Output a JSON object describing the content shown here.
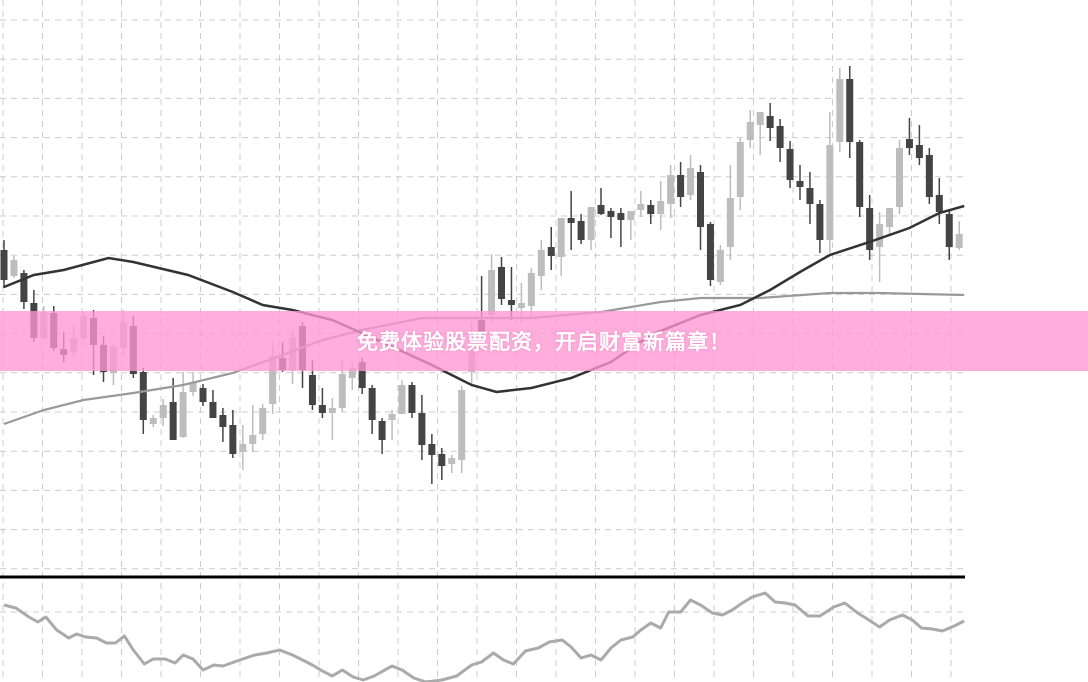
{
  "banner": {
    "text": "免费体验股票配资，开启财富新篇章！"
  },
  "colors": {
    "bearish": "#444444",
    "bullish": "#bdbdbd",
    "ma_fast": "#333333",
    "ma_slow": "#999999",
    "oscillator": "#aaaaaa",
    "banner": "#ff96d4",
    "grid": "#cccccc"
  },
  "chart_data": {
    "type": "candlestick",
    "title": "",
    "grid": true,
    "candles_ohlc": [
      [
        35.0,
        36.0,
        31.2,
        32.0
      ],
      [
        32.4,
        34.4,
        32.2,
        34.0
      ],
      [
        32.7,
        33.0,
        29.1,
        29.8
      ],
      [
        29.7,
        31.0,
        25.8,
        26.2
      ],
      [
        26.2,
        29.4,
        26.0,
        28.8
      ],
      [
        28.7,
        29.4,
        24.9,
        25.2
      ],
      [
        25.1,
        26.8,
        23.8,
        24.5
      ],
      [
        24.8,
        27.4,
        24.3,
        26.2
      ],
      [
        26.2,
        28.8,
        26.0,
        28.4
      ],
      [
        28.2,
        29.0,
        22.5,
        25.5
      ],
      [
        25.5,
        26.4,
        21.8,
        22.8
      ],
      [
        22.7,
        25.6,
        21.5,
        25.4
      ],
      [
        25.2,
        29.0,
        24.5,
        27.8
      ],
      [
        27.4,
        28.4,
        22.2,
        22.6
      ],
      [
        22.8,
        23.2,
        16.6,
        18.0
      ],
      [
        17.6,
        18.5,
        17.3,
        18.2
      ],
      [
        18.2,
        20.1,
        17.4,
        19.5
      ],
      [
        19.8,
        22.2,
        16.0,
        16.0
      ],
      [
        16.3,
        22.8,
        16.2,
        20.8
      ],
      [
        20.8,
        22.8,
        20.4,
        21.7
      ],
      [
        21.2,
        21.6,
        19.4,
        19.8
      ],
      [
        19.8,
        21.0,
        18.2,
        18.2
      ],
      [
        18.5,
        19.2,
        15.8,
        17.3
      ],
      [
        17.5,
        19.0,
        14.2,
        14.6
      ],
      [
        14.8,
        17.5,
        13.0,
        15.6
      ],
      [
        15.6,
        19.5,
        14.8,
        16.5
      ],
      [
        16.6,
        19.6,
        16.0,
        19.2
      ],
      [
        19.6,
        25.8,
        18.6,
        24.4
      ],
      [
        24.2,
        25.8,
        22.8,
        23.0
      ],
      [
        23.0,
        27.0,
        21.6,
        26.2
      ],
      [
        27.4,
        27.8,
        21.2,
        23.0
      ],
      [
        22.5,
        24.0,
        19.0,
        19.5
      ],
      [
        19.5,
        21.2,
        18.2,
        18.7
      ],
      [
        18.7,
        20.2,
        16.0,
        19.2
      ],
      [
        19.2,
        24.0,
        18.8,
        22.6
      ],
      [
        22.2,
        23.8,
        21.0,
        23.2
      ],
      [
        23.8,
        24.2,
        20.6,
        21.2
      ],
      [
        21.2,
        21.5,
        16.6,
        18.0
      ],
      [
        17.9,
        18.2,
        14.6,
        16.0
      ],
      [
        18.0,
        19.0,
        16.0,
        18.6
      ],
      [
        18.6,
        22.0,
        18.6,
        21.5
      ],
      [
        21.5,
        21.8,
        18.2,
        18.7
      ],
      [
        18.7,
        20.5,
        14.0,
        15.5
      ],
      [
        15.6,
        16.6,
        11.6,
        14.5
      ],
      [
        14.6,
        15.2,
        12.0,
        13.4
      ],
      [
        13.6,
        14.5,
        12.7,
        14.2
      ],
      [
        14.0,
        21.4,
        12.7,
        21.0
      ],
      [
        22.8,
        27.8,
        21.6,
        25.0
      ],
      [
        28.0,
        32.4,
        26.0,
        26.5
      ],
      [
        28.5,
        34.6,
        27.8,
        33.0
      ],
      [
        33.3,
        34.3,
        29.5,
        30.1
      ],
      [
        30.0,
        33.3,
        28.0,
        29.5
      ],
      [
        29.2,
        31.7,
        27.7,
        29.7
      ],
      [
        29.4,
        33.2,
        28.2,
        32.7
      ],
      [
        32.4,
        36.0,
        31.0,
        35.0
      ],
      [
        35.3,
        37.3,
        33.0,
        34.4
      ],
      [
        34.3,
        38.2,
        32.4,
        38.2
      ],
      [
        38.2,
        40.9,
        35.0,
        37.7
      ],
      [
        37.9,
        38.6,
        35.6,
        36.0
      ],
      [
        36.0,
        39.3,
        35.0,
        39.3
      ],
      [
        39.5,
        41.2,
        38.5,
        38.6
      ],
      [
        38.9,
        39.2,
        36.2,
        38.3
      ],
      [
        38.7,
        39.2,
        35.3,
        38.0
      ],
      [
        38.0,
        38.9,
        36.0,
        38.9
      ],
      [
        39.0,
        40.9,
        38.3,
        39.6
      ],
      [
        39.5,
        40.0,
        37.6,
        38.6
      ],
      [
        38.6,
        41.9,
        37.0,
        39.9
      ],
      [
        39.6,
        43.5,
        38.2,
        42.5
      ],
      [
        42.5,
        43.8,
        39.3,
        40.3
      ],
      [
        40.5,
        44.5,
        40.0,
        43.2
      ],
      [
        42.8,
        43.5,
        35.0,
        37.3
      ],
      [
        37.6,
        37.8,
        31.4,
        32.0
      ],
      [
        31.8,
        35.5,
        31.5,
        35.0
      ],
      [
        35.3,
        43.5,
        34.0,
        40.2
      ],
      [
        40.3,
        46.2,
        39.0,
        45.8
      ],
      [
        46.0,
        49.0,
        45.2,
        47.8
      ],
      [
        47.5,
        48.8,
        44.5,
        48.8
      ],
      [
        48.4,
        49.7,
        45.9,
        47.2
      ],
      [
        47.4,
        48.1,
        43.8,
        45.2
      ],
      [
        45.1,
        45.9,
        41.2,
        42.0
      ],
      [
        41.9,
        43.5,
        40.0,
        41.3
      ],
      [
        41.2,
        42.8,
        37.6,
        39.6
      ],
      [
        39.6,
        40.0,
        34.7,
        36.0
      ],
      [
        36.0,
        48.8,
        34.7,
        45.5
      ],
      [
        45.8,
        53.2,
        44.8,
        52.1
      ],
      [
        52.1,
        53.4,
        44.2,
        45.8
      ],
      [
        45.8,
        46.0,
        38.3,
        39.3
      ],
      [
        39.2,
        40.5,
        34.0,
        35.0
      ],
      [
        35.3,
        38.8,
        31.8,
        37.6
      ],
      [
        37.3,
        39.2,
        36.4,
        39.2
      ],
      [
        39.3,
        46.0,
        38.6,
        45.2
      ],
      [
        46.1,
        48.2,
        44.5,
        45.2
      ],
      [
        45.5,
        47.5,
        43.5,
        44.2
      ],
      [
        44.5,
        45.2,
        39.6,
        40.3
      ],
      [
        40.5,
        42.2,
        37.6,
        38.8
      ],
      [
        38.6,
        38.9,
        34.0,
        35.3
      ],
      [
        35.2,
        37.9,
        35.0,
        36.6
      ]
    ],
    "ma_fast": [
      [
        0,
        31.3
      ],
      [
        3,
        32.5
      ],
      [
        6,
        33.0
      ],
      [
        10.5,
        34.2
      ],
      [
        13,
        33.8
      ],
      [
        18.5,
        32.5
      ],
      [
        23,
        30.8
      ],
      [
        26,
        29.5
      ],
      [
        29,
        29.0
      ],
      [
        33,
        28.0
      ],
      [
        38,
        25.8
      ],
      [
        43,
        23.5
      ],
      [
        47,
        21.5
      ],
      [
        49.5,
        20.8
      ],
      [
        53,
        21.2
      ],
      [
        57,
        22.2
      ],
      [
        61,
        23.8
      ],
      [
        65,
        26.5
      ],
      [
        70,
        28.5
      ],
      [
        74,
        29.5
      ],
      [
        77,
        31.0
      ],
      [
        80,
        32.8
      ],
      [
        83,
        34.5
      ],
      [
        87,
        35.8
      ],
      [
        91,
        37.2
      ],
      [
        94,
        38.7
      ],
      [
        96.5,
        39.4
      ]
    ],
    "ma_slow": [
      [
        0,
        17.6
      ],
      [
        4,
        19.0
      ],
      [
        8,
        20.0
      ],
      [
        13,
        20.7
      ],
      [
        18,
        21.5
      ],
      [
        23,
        22.7
      ],
      [
        28,
        24.5
      ],
      [
        32,
        26.0
      ],
      [
        36,
        27.0
      ],
      [
        42,
        28.2
      ],
      [
        47,
        28.2
      ],
      [
        53,
        28.2
      ],
      [
        60,
        28.8
      ],
      [
        66,
        29.8
      ],
      [
        70,
        30.2
      ],
      [
        76,
        30.2
      ],
      [
        83,
        30.7
      ],
      [
        88,
        30.7
      ],
      [
        96.5,
        30.5
      ]
    ],
    "oscillator": [
      [
        0,
        9.5
      ],
      [
        1.2,
        9.2
      ],
      [
        2.5,
        8.3
      ],
      [
        3.4,
        7.8
      ],
      [
        4.2,
        8.3
      ],
      [
        5.3,
        7.0
      ],
      [
        6.5,
        6.2
      ],
      [
        7.3,
        6.6
      ],
      [
        8.2,
        6.3
      ],
      [
        9.3,
        6.2
      ],
      [
        10.3,
        5.7
      ],
      [
        11.2,
        5.7
      ],
      [
        12.1,
        6.4
      ],
      [
        13,
        5.0
      ],
      [
        14.1,
        3.6
      ],
      [
        15,
        4.1
      ],
      [
        16.2,
        4.1
      ],
      [
        17.2,
        3.7
      ],
      [
        18,
        4.5
      ],
      [
        19,
        4.1
      ],
      [
        20,
        3.0
      ],
      [
        21.1,
        3.5
      ],
      [
        22,
        3.4
      ],
      [
        23.7,
        4.0
      ],
      [
        25.2,
        4.5
      ],
      [
        26.4,
        4.7
      ],
      [
        27.7,
        5.0
      ],
      [
        29,
        4.5
      ],
      [
        30,
        4.0
      ],
      [
        31,
        3.5
      ],
      [
        32,
        2.9
      ],
      [
        33,
        2.4
      ],
      [
        34,
        3.0
      ],
      [
        35.1,
        2.3
      ],
      [
        36.1,
        2.0
      ],
      [
        37.2,
        2.4
      ],
      [
        39,
        3.4
      ],
      [
        40,
        3.0
      ],
      [
        41.2,
        2.2
      ],
      [
        42.4,
        1.8
      ],
      [
        44,
        2.0
      ],
      [
        45.5,
        2.4
      ],
      [
        47,
        3.5
      ],
      [
        48,
        3.8
      ],
      [
        49.2,
        4.7
      ],
      [
        50.2,
        4.0
      ],
      [
        51.2,
        3.6
      ],
      [
        52.4,
        4.9
      ],
      [
        53.7,
        5.2
      ],
      [
        54.8,
        5.8
      ],
      [
        56.1,
        6.0
      ],
      [
        57,
        5.3
      ],
      [
        58,
        4.2
      ],
      [
        59,
        4.5
      ],
      [
        60,
        4.0
      ],
      [
        61,
        5.2
      ],
      [
        62,
        6.0
      ],
      [
        63.2,
        6.3
      ],
      [
        64,
        7.0
      ],
      [
        65,
        7.7
      ],
      [
        66,
        7.2
      ],
      [
        66.8,
        8.8
      ],
      [
        68,
        8.8
      ],
      [
        69,
        10.0
      ],
      [
        70,
        9.5
      ],
      [
        71.2,
        8.7
      ],
      [
        72.2,
        8.5
      ],
      [
        73.2,
        9.0
      ],
      [
        74.2,
        9.7
      ],
      [
        75.2,
        10.3
      ],
      [
        76.5,
        10.7
      ],
      [
        77.5,
        9.8
      ],
      [
        78.5,
        9.7
      ],
      [
        79.5,
        9.5
      ],
      [
        80.8,
        8.4
      ],
      [
        82,
        8.4
      ],
      [
        83.4,
        9.3
      ],
      [
        84.5,
        9.7
      ],
      [
        85.8,
        8.7
      ],
      [
        86.6,
        8.2
      ],
      [
        88,
        7.3
      ],
      [
        89,
        8.0
      ],
      [
        90.3,
        8.5
      ],
      [
        91.3,
        8.0
      ],
      [
        92.2,
        7.2
      ],
      [
        93.3,
        7.1
      ],
      [
        94.3,
        6.9
      ],
      [
        95.5,
        7.4
      ],
      [
        96.5,
        7.9
      ]
    ]
  }
}
